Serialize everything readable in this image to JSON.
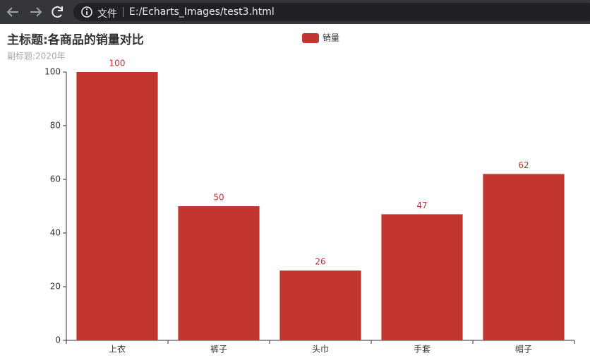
{
  "browser": {
    "security_label": "文件",
    "url": "E:/Echarts_Images/test3.html"
  },
  "chart_data": {
    "type": "bar",
    "title": "主标题:各商品的销量对比",
    "subtitle": "副标题:2020年",
    "categories": [
      "上衣",
      "裤子",
      "头巾",
      "手套",
      "帽子"
    ],
    "series": [
      {
        "name": "销量",
        "color": "#c23531",
        "values": [
          100,
          50,
          26,
          47,
          62
        ]
      }
    ],
    "ylim": [
      0,
      100
    ],
    "yticks": [
      0,
      20,
      40,
      60,
      80,
      100
    ],
    "grid": false,
    "legend": "top"
  }
}
